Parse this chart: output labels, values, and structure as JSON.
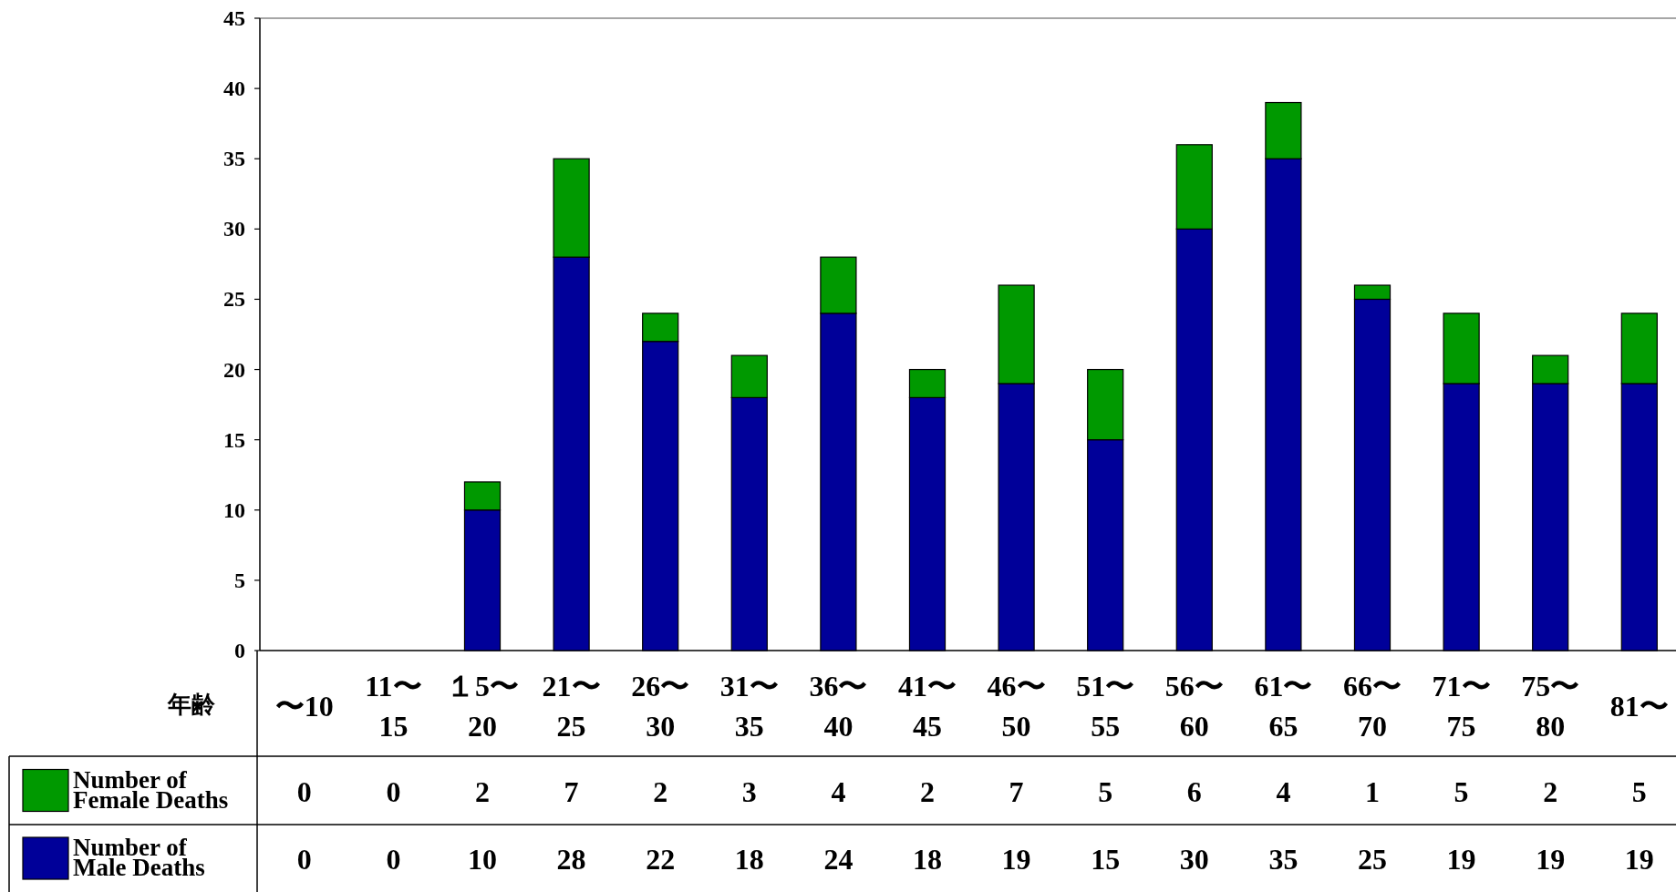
{
  "chart_data": {
    "type": "bar",
    "stacked": true,
    "xlabel": "年齢",
    "categories": [
      "〜10",
      "11〜15",
      "１5〜20",
      "21〜25",
      "26〜30",
      "31〜35",
      "36〜40",
      "41〜45",
      "46〜50",
      "51〜55",
      "56〜60",
      "61〜65",
      "66〜70",
      "71〜75",
      "75〜80",
      "81〜"
    ],
    "series": [
      {
        "name": "Number of Male Deaths",
        "color": "#000099",
        "values": [
          0,
          0,
          10,
          28,
          22,
          18,
          24,
          18,
          19,
          15,
          30,
          35,
          25,
          19,
          19,
          19
        ]
      },
      {
        "name": "Number of Female Deaths",
        "color": "#009900",
        "values": [
          0,
          0,
          2,
          7,
          2,
          3,
          4,
          2,
          7,
          5,
          6,
          4,
          1,
          5,
          2,
          5
        ]
      }
    ],
    "ylim": [
      0,
      45
    ],
    "yticks": [
      0,
      5,
      10,
      15,
      20,
      25,
      30,
      35,
      40,
      45
    ],
    "grid": false,
    "data_labels": true,
    "legend": "bottom left"
  }
}
